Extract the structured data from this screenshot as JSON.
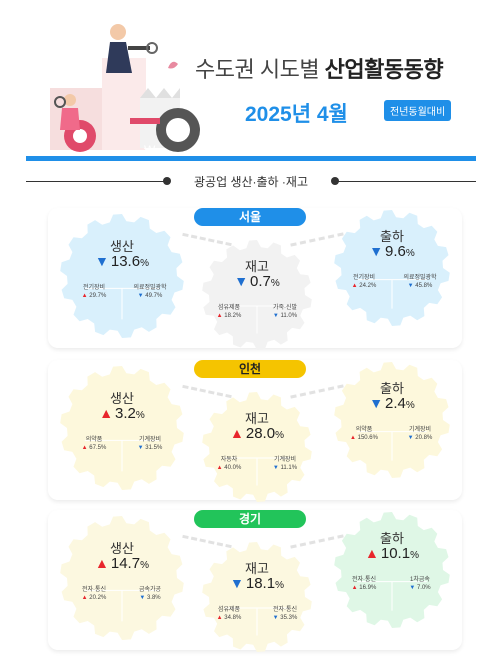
{
  "header": {
    "title_prefix": "수도권 시도별 ",
    "title_bold": "산업활동동향",
    "date": "2025년 4월",
    "badge": "전년동월대비"
  },
  "subhead": "광공업 생산·출하 ·재고",
  "sections": [
    {
      "region": "서울",
      "color": "#1f8fe8",
      "production": {
        "label": "생산",
        "value": "13.6",
        "dir": "down",
        "subs": [
          {
            "name": "전기장비",
            "val": "29.7%",
            "dir": "up"
          },
          {
            "name": "의료정밀광학",
            "val": "49.7%",
            "dir": "down"
          }
        ]
      },
      "inventory": {
        "label": "재고",
        "value": "0.7",
        "dir": "down",
        "subs": [
          {
            "name": "섬유제품",
            "val": "18.2%",
            "dir": "up"
          },
          {
            "name": "가죽·신발",
            "val": "11.0%",
            "dir": "down"
          }
        ]
      },
      "shipment": {
        "label": "출하",
        "value": "9.6",
        "dir": "down",
        "subs": [
          {
            "name": "전기장비",
            "val": "24.2%",
            "dir": "up"
          },
          {
            "name": "의료정밀광학",
            "val": "45.8%",
            "dir": "down"
          }
        ]
      }
    },
    {
      "region": "인천",
      "color": "#f5c400",
      "production": {
        "label": "생산",
        "value": "3.2",
        "dir": "up",
        "subs": [
          {
            "name": "의약품",
            "val": "67.5%",
            "dir": "up"
          },
          {
            "name": "기계장비",
            "val": "31.5%",
            "dir": "down"
          }
        ]
      },
      "inventory": {
        "label": "재고",
        "value": "28.0",
        "dir": "up",
        "subs": [
          {
            "name": "자동차",
            "val": "40.0%",
            "dir": "up"
          },
          {
            "name": "기계장비",
            "val": "11.1%",
            "dir": "down"
          }
        ]
      },
      "shipment": {
        "label": "출하",
        "value": "2.4",
        "dir": "down",
        "subs": [
          {
            "name": "의약품",
            "val": "150.6%",
            "dir": "up"
          },
          {
            "name": "기계장비",
            "val": "20.8%",
            "dir": "down"
          }
        ]
      }
    },
    {
      "region": "경기",
      "color": "#22c45a",
      "production": {
        "label": "생산",
        "value": "14.7",
        "dir": "up",
        "subs": [
          {
            "name": "전자·통신",
            "val": "20.2%",
            "dir": "up"
          },
          {
            "name": "금속가공",
            "val": "3.8%",
            "dir": "down"
          }
        ]
      },
      "inventory": {
        "label": "재고",
        "value": "18.1",
        "dir": "down",
        "subs": [
          {
            "name": "섬유제품",
            "val": "34.8%",
            "dir": "up"
          },
          {
            "name": "전자·통신",
            "val": "35.3%",
            "dir": "down"
          }
        ]
      },
      "shipment": {
        "label": "출하",
        "value": "10.1",
        "dir": "up",
        "subs": [
          {
            "name": "전자·통신",
            "val": "16.9%",
            "dir": "up"
          },
          {
            "name": "1차금속",
            "val": "7.0%",
            "dir": "down"
          }
        ]
      }
    }
  ]
}
